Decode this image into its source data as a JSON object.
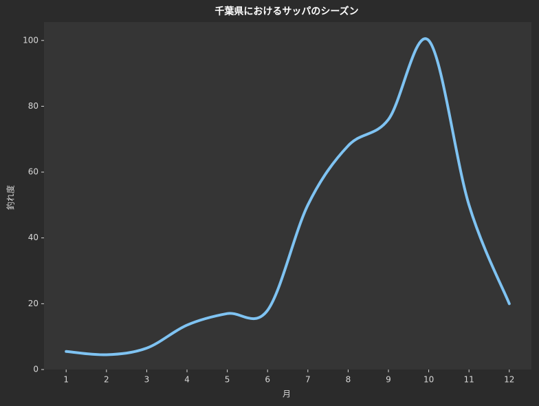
{
  "chart_data": {
    "type": "line",
    "title": "千葉県におけるサッパのシーズン",
    "x_label": "月",
    "y_label": "釣れ度",
    "x": [
      1,
      2,
      3,
      4,
      5,
      6,
      7,
      8,
      9,
      10,
      11,
      12
    ],
    "series": [
      {
        "name": "釣れ度",
        "color": "#7fc3f2",
        "values": [
          5.5,
          4.5,
          6.5,
          13.5,
          17,
          18,
          50,
          68,
          76,
          100,
          50,
          20
        ]
      }
    ],
    "xlim": [
      0.45,
      12.55
    ],
    "xticks": [
      1,
      2,
      3,
      4,
      5,
      6,
      7,
      8,
      9,
      10,
      11,
      12
    ],
    "ylim": [
      0,
      105.6
    ],
    "yticks": [
      0,
      20,
      40,
      60,
      80,
      100
    ]
  }
}
